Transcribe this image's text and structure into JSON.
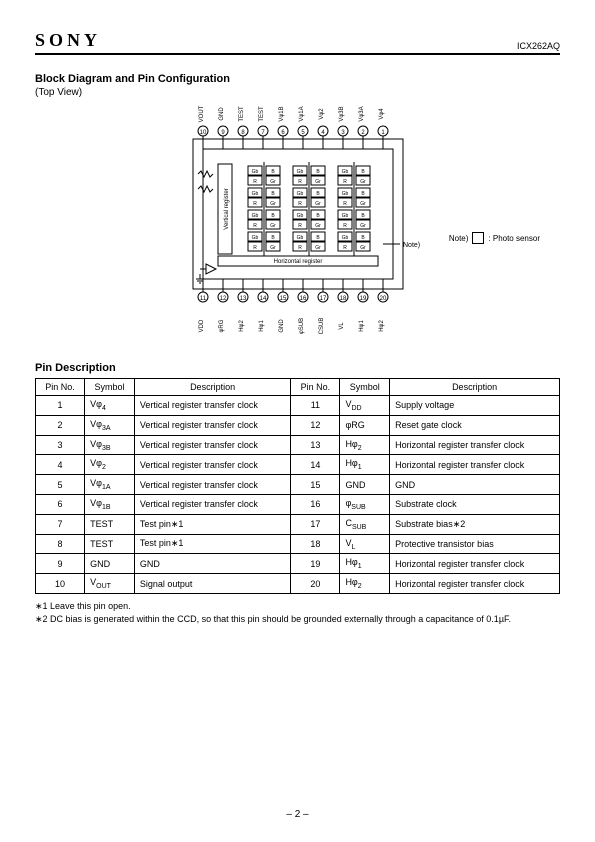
{
  "header": {
    "brand": "SONY",
    "part": "ICX262AQ"
  },
  "section1": {
    "title": "Block Diagram and Pin Configuration",
    "subtitle": "(Top View)"
  },
  "legend": {
    "note": "Note)",
    "text": ": Photo sensor"
  },
  "diagram": {
    "top_pins": [
      "Vφ4",
      "Vφ3A",
      "Vφ3B",
      "Vφ2",
      "Vφ1A",
      "Vφ1B",
      "TEST",
      "TEST",
      "GND",
      "VOUT"
    ],
    "top_nums": [
      "1",
      "2",
      "3",
      "4",
      "5",
      "6",
      "7",
      "8",
      "9",
      "10"
    ],
    "bot_pins": [
      "VDD",
      "φRG",
      "Hφ2",
      "Hφ1",
      "GND",
      "φSUB",
      "CSUB",
      "VL",
      "Hφ1",
      "Hφ2"
    ],
    "bot_nums": [
      "11",
      "12",
      "13",
      "14",
      "15",
      "16",
      "17",
      "18",
      "19",
      "20"
    ],
    "cells": [
      "Gb",
      "B",
      "R",
      "Gr"
    ],
    "vreg": "Vertical register",
    "hreg": "Horizontal register",
    "note": "Note)"
  },
  "section2": {
    "title": "Pin Description"
  },
  "table": {
    "cols": [
      "Pin No.",
      "Symbol",
      "Description",
      "Pin No.",
      "Symbol",
      "Description"
    ],
    "rows": [
      [
        "1",
        "Vφ4",
        "Vertical register transfer clock",
        "11",
        "VDD",
        "Supply voltage"
      ],
      [
        "2",
        "Vφ3A",
        "Vertical register transfer clock",
        "12",
        "φRG",
        "Reset gate clock"
      ],
      [
        "3",
        "Vφ3B",
        "Vertical register transfer clock",
        "13",
        "Hφ2",
        "Horizontal register transfer clock"
      ],
      [
        "4",
        "Vφ2",
        "Vertical register transfer clock",
        "14",
        "Hφ1",
        "Horizontal register transfer clock"
      ],
      [
        "5",
        "Vφ1A",
        "Vertical register transfer clock",
        "15",
        "GND",
        "GND"
      ],
      [
        "6",
        "Vφ1B",
        "Vertical register transfer clock",
        "16",
        "φSUB",
        "Substrate clock"
      ],
      [
        "7",
        "TEST",
        "Test pin∗1",
        "17",
        "CSUB",
        "Substrate bias∗2"
      ],
      [
        "8",
        "TEST",
        "Test pin∗1",
        "18",
        "VL",
        "Protective transistor bias"
      ],
      [
        "9",
        "GND",
        "GND",
        "19",
        "Hφ1",
        "Horizontal register transfer clock"
      ],
      [
        "10",
        "VOUT",
        "Signal output",
        "20",
        "Hφ2",
        "Horizontal register transfer clock"
      ]
    ]
  },
  "footnotes": {
    "n1": "∗1  Leave this pin open.",
    "n2": "∗2  DC bias is generated within the CCD, so that this pin should be grounded externally through a capacitance of 0.1µF."
  },
  "page": "– 2 –"
}
